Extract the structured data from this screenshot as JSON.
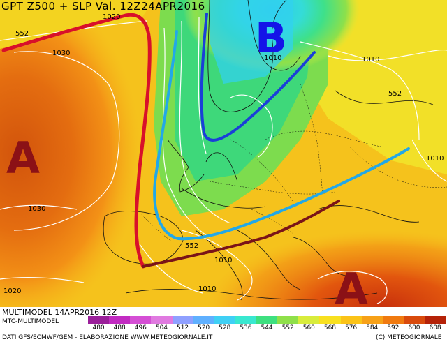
{
  "title": "GPT Z500 + SLP Val. 12Z24APR2016",
  "model_line": "MULTIMODEL 14APR2016 12Z",
  "model_name": "MTC-MULTIMODEL",
  "source_line": "DATI GFS/ECMWF/GEM - ELABORAZIONE WWW.METEOGIORNALE.IT",
  "copyright": "(C) METEOGIORNALE",
  "pressure_labels": {
    "A_west": "A",
    "B_north": "B",
    "A_south": "A"
  },
  "isobar_labels": {
    "l1020_top": "1020",
    "l552_nw": "552",
    "l1030_atl": "1030",
    "l1010_nord": "1010",
    "l1010_ne": "1010",
    "l552_east": "552",
    "l1010_east": "1010",
    "l1030_low": "1030",
    "l552_italy": "552",
    "l1010_italy": "1010",
    "l1010_south": "1010",
    "l1020_sw": "1020"
  },
  "legend_values": [
    "480",
    "488",
    "496",
    "504",
    "512",
    "520",
    "528",
    "536",
    "544",
    "552",
    "560",
    "568",
    "576",
    "584",
    "592",
    "600",
    "608"
  ],
  "legend_colors": [
    "#9a1f9a",
    "#c22bc2",
    "#d54fd5",
    "#e07ae0",
    "#8fa0ff",
    "#5fb0ff",
    "#3fd0f5",
    "#39e8d0",
    "#3ee080",
    "#8fe04a",
    "#d8ec3c",
    "#f8e020",
    "#fbc318",
    "#f7a118",
    "#f07a10",
    "#d94a0c",
    "#b52208"
  ],
  "colors": {
    "ridge_line": "#d8102a",
    "trough_line": "#1a3fd8",
    "trough_line_south": "#22a8e8",
    "ridge_line_south": "#7a1418"
  }
}
